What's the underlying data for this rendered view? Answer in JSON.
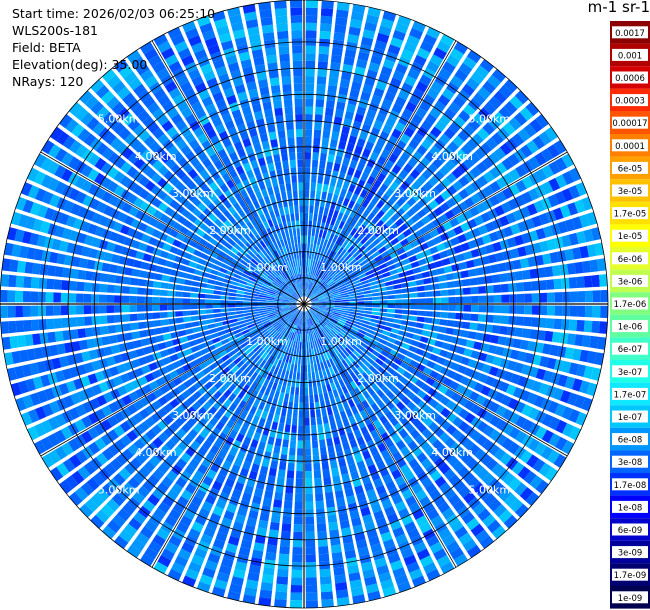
{
  "info": {
    "start_time": "Start time: 2026/02/03 06:25:10",
    "device": "WLS200s-181",
    "field": "Field: BETA",
    "elevation": "Elevation(deg): 35.00",
    "nrays": "NRays: 120"
  },
  "colorbar": {
    "unit_label": "m-1 sr-1",
    "ticks": [
      "0.0017",
      "0.001",
      "0.0006",
      "0.0003",
      "0.00017",
      "0.0001",
      "6e-05",
      "3e-05",
      "1.7e-05",
      "1e-05",
      "6e-06",
      "3e-06",
      "1.7e-06",
      "1e-06",
      "6e-07",
      "3e-07",
      "1.7e-07",
      "1e-07",
      "6e-08",
      "3e-08",
      "1.7e-08",
      "1e-08",
      "6e-09",
      "3e-09",
      "1.7e-09",
      "1e-09"
    ],
    "colors": [
      "#8b0000",
      "#b00000",
      "#d40000",
      "#ff2a00",
      "#ff5500",
      "#ff8000",
      "#ffa000",
      "#ffc000",
      "#ffe000",
      "#ffff00",
      "#e6ff2a",
      "#c0ff50",
      "#80ff80",
      "#60ffa0",
      "#40ffc8",
      "#20ffe8",
      "#10e8ff",
      "#00c8ff",
      "#0096ff",
      "#0064ff",
      "#0032ff",
      "#0000ff",
      "#0000cc",
      "#00009a",
      "#000070",
      "#000050"
    ]
  },
  "chart_data": {
    "type": "heatmap",
    "subtype": "ppi-polar",
    "rays": 120,
    "range_ticks_km": [
      1,
      2,
      3,
      4,
      5
    ],
    "range_labels": [
      "1.00km",
      "2.00km",
      "3.00km",
      "4.00km",
      "5.00km"
    ],
    "max_range_km": 5.8,
    "dominant_value_range": [
      "3e-08",
      "1e-07"
    ]
  }
}
